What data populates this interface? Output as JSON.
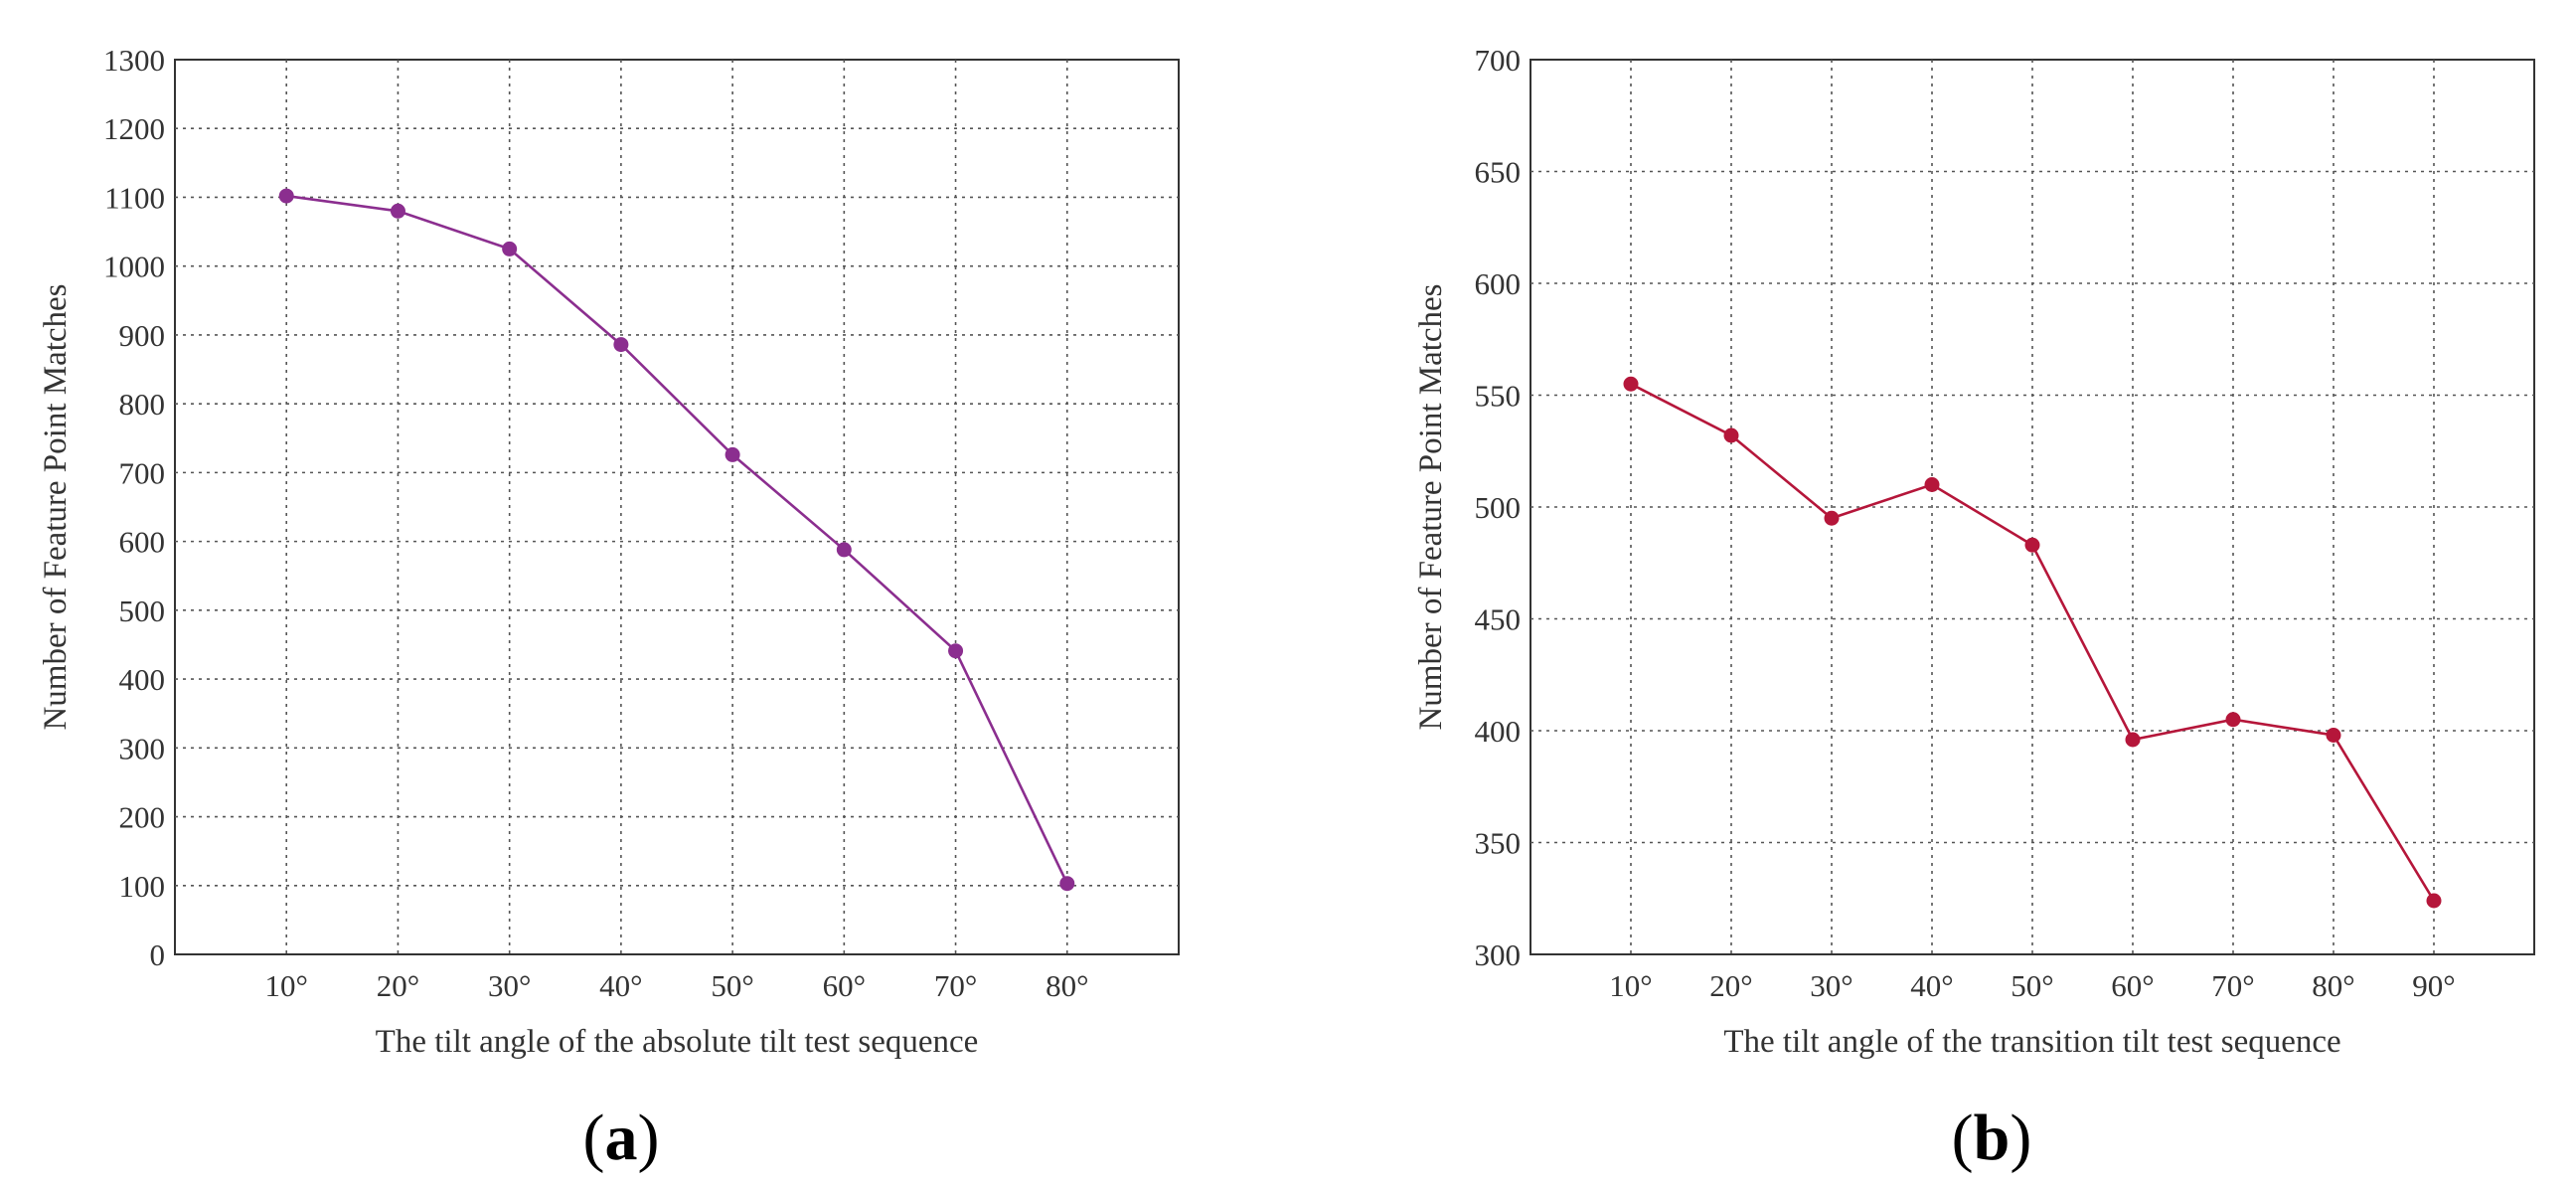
{
  "chart_data": [
    {
      "type": "line",
      "panel_label": "a",
      "title": "",
      "xlabel": "The tilt angle of the absolute tilt test sequence",
      "ylabel": "Number of Feature Point Matches",
      "categories": [
        "10°",
        "20°",
        "30°",
        "40°",
        "50°",
        "60°",
        "70°",
        "80°"
      ],
      "x_slots": 9,
      "ylim": [
        0,
        1300
      ],
      "yticks": [
        0,
        100,
        200,
        300,
        400,
        500,
        600,
        700,
        800,
        900,
        1000,
        1100,
        1200,
        1300
      ],
      "grid": true,
      "series": [
        {
          "name": "absolute tilt",
          "color": "#8b2e8f",
          "values": [
            1102,
            1080,
            1025,
            886,
            726,
            588,
            441,
            103
          ]
        }
      ]
    },
    {
      "type": "line",
      "panel_label": "b",
      "title": "",
      "xlabel": "The tilt angle of the transition tilt test sequence",
      "ylabel": "Number of Feature Point Matches",
      "categories": [
        "10°",
        "20°",
        "30°",
        "40°",
        "50°",
        "60°",
        "70°",
        "80°",
        "90°"
      ],
      "x_slots": 10,
      "ylim": [
        300,
        700
      ],
      "yticks": [
        300,
        350,
        400,
        450,
        500,
        550,
        600,
        650,
        700
      ],
      "grid": true,
      "series": [
        {
          "name": "transition tilt",
          "color": "#b5163a",
          "values": [
            555,
            532,
            495,
            510,
            483,
            396,
            405,
            398,
            324
          ]
        }
      ]
    }
  ]
}
